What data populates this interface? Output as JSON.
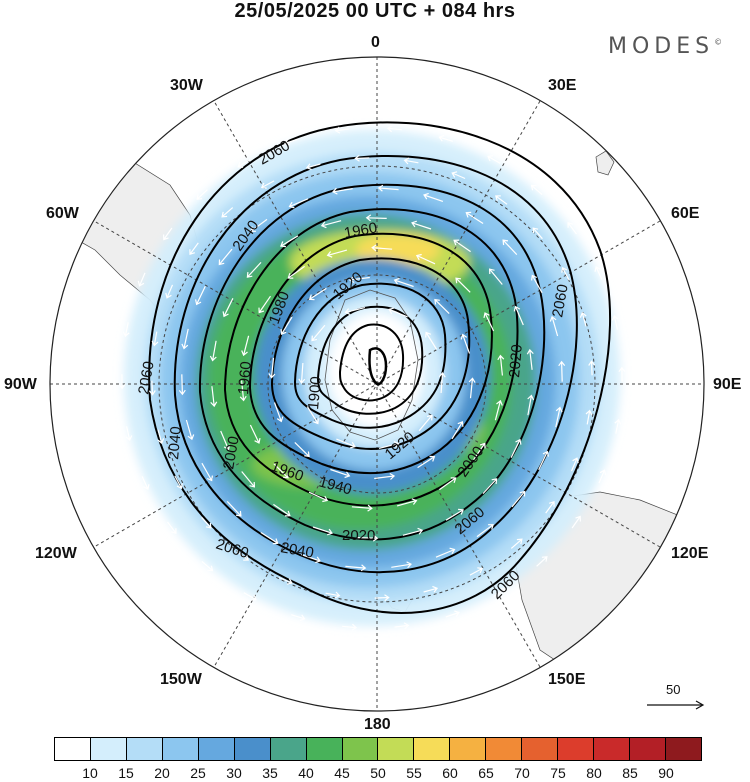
{
  "title": "25/05/2025  00 UTC  + 084 hrs",
  "brand": "MODES",
  "brand_mark": "©",
  "longitude_labels": {
    "n0": "0",
    "n30e": "30E",
    "n60e": "60E",
    "n90e": "90E",
    "n120e": "120E",
    "n150e": "150E",
    "n180": "180",
    "n150w": "150W",
    "n120w": "120W",
    "n90w": "90W",
    "n60w": "60W",
    "n30w": "30W"
  },
  "contours": [
    "1900",
    "1920",
    "1960",
    "1960",
    "1980",
    "1980",
    "1980",
    "1960",
    "1920",
    "1940",
    "2000",
    "2000",
    "2020",
    "2020",
    "2020",
    "2040",
    "2040",
    "2040",
    "2060",
    "2060",
    "2060",
    "2060",
    "2060"
  ],
  "reference_vector": {
    "label": "50"
  },
  "colorbar": {
    "colors": [
      "#ffffff",
      "#d4eefc",
      "#b4ddf7",
      "#8cc6ef",
      "#65a8df",
      "#4a8fcb",
      "#4aa58a",
      "#48b25a",
      "#7ec44c",
      "#c3dc56",
      "#f6dc58",
      "#f5b141",
      "#f18a36",
      "#e5612f",
      "#dc3d2c",
      "#c92a2a",
      "#b31f26",
      "#8e1a1e"
    ],
    "labels": [
      "10",
      "15",
      "20",
      "25",
      "30",
      "35",
      "40",
      "45",
      "50",
      "55",
      "60",
      "65",
      "70",
      "75",
      "80",
      "85",
      "90"
    ]
  },
  "colors": {
    "land": "#eeeeee",
    "coast": "#333333",
    "contour": "#000000",
    "vector": "#ffffff"
  }
}
